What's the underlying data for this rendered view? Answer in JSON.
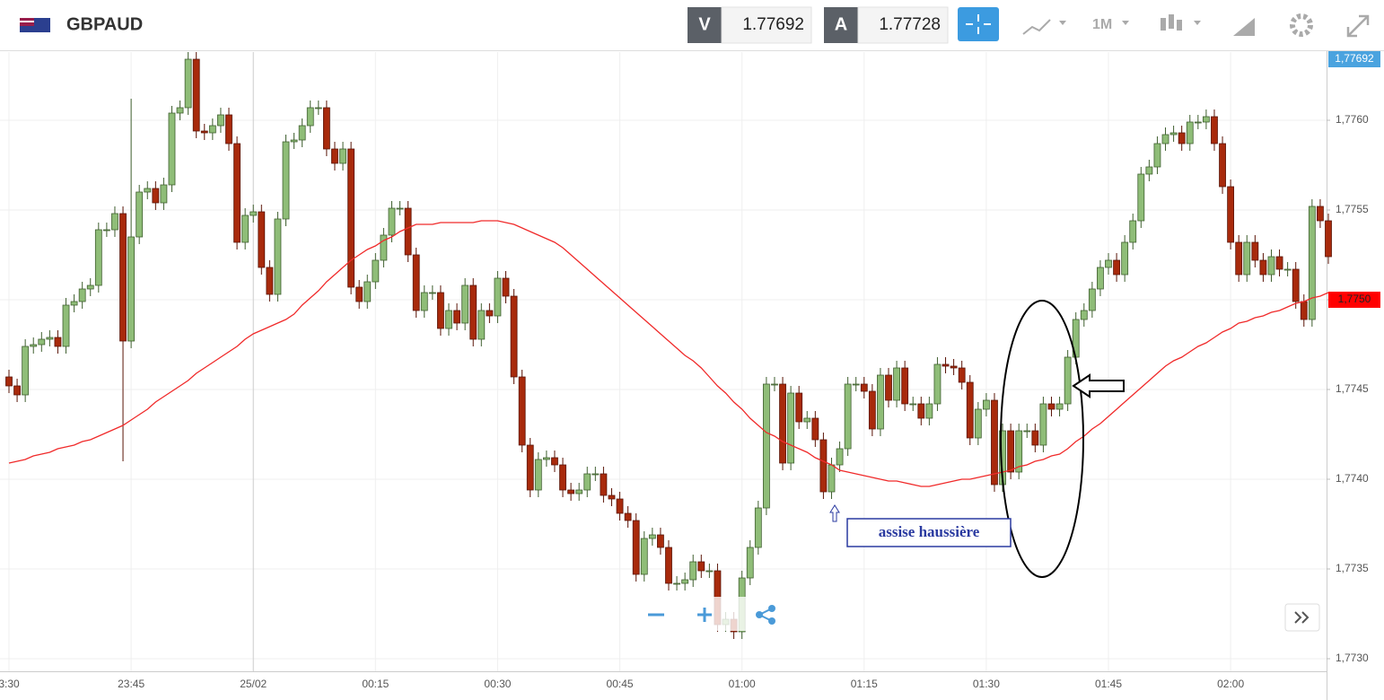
{
  "toolbar": {
    "symbol": "GBPAUD",
    "sell_label": "V",
    "sell": 1.77692,
    "buy_label": "A",
    "buy": 1.77728,
    "timeframe": "1M"
  },
  "chart_data": {
    "type": "candlestick",
    "title": "GBPAUD",
    "categories": [
      "3:30",
      null,
      null,
      null,
      null,
      null,
      null,
      null,
      null,
      null,
      null,
      null,
      null,
      null,
      null,
      "23:45",
      null,
      null,
      null,
      null,
      null,
      null,
      null,
      null,
      null,
      null,
      null,
      null,
      null,
      null,
      "25/02",
      null,
      null,
      null,
      null,
      null,
      null,
      null,
      null,
      null,
      null,
      null,
      null,
      null,
      null,
      "00:15",
      null,
      null,
      null,
      null,
      null,
      null,
      null,
      null,
      null,
      null,
      null,
      null,
      null,
      null,
      "00:30",
      null,
      null,
      null,
      null,
      null,
      null,
      null,
      null,
      null,
      null,
      null,
      null,
      null,
      null,
      "00:45",
      null,
      null,
      null,
      null,
      null,
      null,
      null,
      null,
      null,
      null,
      null,
      null,
      null,
      null,
      "01:00",
      null,
      null,
      null,
      null,
      null,
      null,
      null,
      null,
      null,
      null,
      null,
      null,
      null,
      null,
      "01:15",
      null,
      null,
      null,
      null,
      null,
      null,
      null,
      null,
      null,
      null,
      null,
      null,
      null,
      null,
      "01:30",
      null,
      null,
      null,
      null,
      null,
      null,
      null,
      null,
      null,
      null,
      null,
      null,
      null,
      null,
      "01:45",
      null,
      null,
      null,
      null,
      null,
      null,
      null,
      null,
      null,
      null,
      null,
      null,
      null,
      null,
      "02:00",
      null,
      null,
      null,
      null,
      null,
      null,
      null,
      null,
      null,
      null,
      null,
      null
    ],
    "open": [
      1.77457,
      1.77452,
      1.77447,
      1.77474,
      1.77475,
      1.77478,
      1.77479,
      1.77474,
      1.77497,
      1.77499,
      1.77506,
      1.77508,
      1.77539,
      1.77539,
      1.77548,
      1.77477,
      1.77535,
      1.7756,
      1.77562,
      1.77554,
      1.77564,
      1.77604,
      1.77607,
      1.77634,
      1.77594,
      1.77593,
      1.77597,
      1.77603,
      1.77587,
      1.77532,
      1.77547,
      1.77549,
      1.77518,
      1.77503,
      1.77545,
      1.77588,
      1.77589,
      1.77597,
      1.77607,
      1.77607,
      1.77584,
      1.77576,
      1.77584,
      1.77507,
      1.77499,
      1.7751,
      1.77522,
      1.77536,
      1.77551,
      1.77551,
      1.77525,
      1.77494,
      1.77504,
      1.77504,
      1.77484,
      1.77494,
      1.77487,
      1.77508,
      1.77478,
      1.77494,
      1.77491,
      1.77512,
      1.77502,
      1.77457,
      1.77419,
      1.77394,
      1.77411,
      1.77412,
      1.77408,
      1.77394,
      1.77392,
      1.77394,
      1.77403,
      1.77403,
      1.77391,
      1.77389,
      1.77381,
      1.77377,
      1.77347,
      1.77367,
      1.77369,
      1.77362,
      1.77342,
      1.77342,
      1.77344,
      1.77354,
      1.77349,
      1.77349,
      1.77319,
      1.77322,
      1.77315,
      1.77345,
      1.77362,
      1.77384,
      1.77453,
      1.77453,
      1.77409,
      1.77448,
      1.77432,
      1.77434,
      1.77422,
      1.77393,
      1.77408,
      1.77417,
      1.77453,
      1.77453,
      1.77449,
      1.77428,
      1.77458,
      1.77444,
      1.77462,
      1.77442,
      1.77442,
      1.77434,
      1.77442,
      1.77464,
      1.77463,
      1.77462,
      1.77454,
      1.77423,
      1.77439,
      1.77444,
      1.77397,
      1.77427,
      1.77404,
      1.77427,
      1.77427,
      1.77419,
      1.77442,
      1.77439,
      1.77442,
      1.77468,
      1.77489,
      1.77494,
      1.77506,
      1.77518,
      1.77522,
      1.77514,
      1.77532,
      1.77544,
      1.7757,
      1.77574,
      1.77587,
      1.77592,
      1.77593,
      1.77587,
      1.77599,
      1.77599,
      1.77602,
      1.77587,
      1.77563,
      1.77532,
      1.77514,
      1.77532,
      1.77522,
      1.77514,
      1.77524,
      1.77517,
      1.77517,
      1.77499,
      1.77489,
      1.77552,
      1.77544
    ],
    "high": [
      1.77461,
      1.77456,
      1.77478,
      1.77479,
      1.77482,
      1.77483,
      1.77483,
      1.77501,
      1.77503,
      1.7751,
      1.77512,
      1.77543,
      1.77543,
      1.77552,
      1.77552,
      1.77612,
      1.77564,
      1.77566,
      1.77566,
      1.77568,
      1.77608,
      1.77611,
      1.77638,
      1.77638,
      1.77598,
      1.77601,
      1.77607,
      1.77607,
      1.77591,
      1.77551,
      1.77553,
      1.77553,
      1.77522,
      1.77549,
      1.77592,
      1.77593,
      1.77601,
      1.77611,
      1.77611,
      1.77611,
      1.77588,
      1.77588,
      1.77588,
      1.77511,
      1.77514,
      1.77526,
      1.7754,
      1.77555,
      1.77555,
      1.77555,
      1.77529,
      1.77508,
      1.77508,
      1.77508,
      1.77498,
      1.77498,
      1.77512,
      1.77512,
      1.77498,
      1.77498,
      1.77516,
      1.77516,
      1.77506,
      1.77461,
      1.77423,
      1.77415,
      1.77416,
      1.77416,
      1.77412,
      1.77398,
      1.77398,
      1.77407,
      1.77407,
      1.77407,
      1.77395,
      1.77393,
      1.77385,
      1.77381,
      1.77371,
      1.77373,
      1.77373,
      1.77366,
      1.77346,
      1.77348,
      1.77358,
      1.77358,
      1.77353,
      1.77353,
      1.77326,
      1.77326,
      1.77349,
      1.77366,
      1.77388,
      1.77457,
      1.77457,
      1.77457,
      1.77452,
      1.77452,
      1.77438,
      1.77438,
      1.77426,
      1.77412,
      1.77421,
      1.77457,
      1.77457,
      1.77457,
      1.77453,
      1.77462,
      1.77462,
      1.77466,
      1.77466,
      1.77446,
      1.77446,
      1.77446,
      1.77468,
      1.77468,
      1.77467,
      1.77466,
      1.77458,
      1.77443,
      1.77448,
      1.77448,
      1.77431,
      1.77431,
      1.77431,
      1.77431,
      1.77431,
      1.77446,
      1.77446,
      1.77446,
      1.77472,
      1.77493,
      1.77498,
      1.7751,
      1.77522,
      1.77526,
      1.77526,
      1.77536,
      1.77548,
      1.77574,
      1.77578,
      1.77591,
      1.77596,
      1.77597,
      1.77597,
      1.77603,
      1.77603,
      1.77606,
      1.77606,
      1.77591,
      1.77567,
      1.77536,
      1.77536,
      1.77536,
      1.77526,
      1.77528,
      1.77528,
      1.77521,
      1.77521,
      1.77503,
      1.77556,
      1.77556,
      1.77548
    ],
    "low": [
      1.77448,
      1.77443,
      1.77443,
      1.7747,
      1.77471,
      1.77474,
      1.7747,
      1.7747,
      1.77493,
      1.77495,
      1.77502,
      1.77504,
      1.77535,
      1.77535,
      1.7741,
      1.77473,
      1.77531,
      1.77556,
      1.7755,
      1.7755,
      1.7756,
      1.776,
      1.77603,
      1.7759,
      1.77589,
      1.77589,
      1.77593,
      1.77583,
      1.77528,
      1.77528,
      1.77543,
      1.77514,
      1.77499,
      1.77499,
      1.77541,
      1.77584,
      1.77585,
      1.77593,
      1.77603,
      1.7758,
      1.77572,
      1.77572,
      1.77503,
      1.77495,
      1.77495,
      1.77506,
      1.77518,
      1.77532,
      1.77547,
      1.77521,
      1.7749,
      1.7749,
      1.775,
      1.7748,
      1.7748,
      1.77483,
      1.77483,
      1.77474,
      1.77474,
      1.77487,
      1.77487,
      1.77498,
      1.77453,
      1.77415,
      1.7739,
      1.7739,
      1.77407,
      1.77404,
      1.7739,
      1.77388,
      1.77388,
      1.7739,
      1.77399,
      1.77387,
      1.77385,
      1.77377,
      1.77373,
      1.77343,
      1.77343,
      1.77363,
      1.77358,
      1.77338,
      1.77338,
      1.77338,
      1.7734,
      1.77345,
      1.77345,
      1.77315,
      1.77315,
      1.77311,
      1.77311,
      1.77341,
      1.77358,
      1.7738,
      1.77449,
      1.77405,
      1.77405,
      1.77428,
      1.77428,
      1.77418,
      1.77389,
      1.77389,
      1.77404,
      1.77413,
      1.77449,
      1.77445,
      1.77424,
      1.77424,
      1.7744,
      1.7744,
      1.77438,
      1.77438,
      1.7743,
      1.7743,
      1.77438,
      1.77459,
      1.77458,
      1.7745,
      1.77419,
      1.77419,
      1.77435,
      1.77393,
      1.77393,
      1.774,
      1.774,
      1.77423,
      1.77415,
      1.77415,
      1.77435,
      1.77435,
      1.77438,
      1.77464,
      1.77485,
      1.7749,
      1.77502,
      1.77514,
      1.7751,
      1.7751,
      1.77528,
      1.7754,
      1.77566,
      1.7757,
      1.77583,
      1.77588,
      1.77583,
      1.77583,
      1.77595,
      1.77595,
      1.77583,
      1.77559,
      1.77528,
      1.7751,
      1.7751,
      1.77518,
      1.7751,
      1.7751,
      1.77513,
      1.77513,
      1.77495,
      1.77485,
      1.77485,
      1.7754,
      1.7752
    ],
    "close": [
      1.77452,
      1.77447,
      1.77474,
      1.77475,
      1.77478,
      1.77479,
      1.77474,
      1.77497,
      1.77499,
      1.77506,
      1.77508,
      1.77539,
      1.77539,
      1.77548,
      1.77477,
      1.77535,
      1.7756,
      1.77562,
      1.77554,
      1.77564,
      1.77604,
      1.77607,
      1.77634,
      1.77594,
      1.77593,
      1.77597,
      1.77603,
      1.77587,
      1.77532,
      1.77547,
      1.77549,
      1.77518,
      1.77503,
      1.77545,
      1.77588,
      1.77589,
      1.77597,
      1.77607,
      1.77607,
      1.77584,
      1.77576,
      1.77584,
      1.77507,
      1.77499,
      1.7751,
      1.77522,
      1.77536,
      1.77551,
      1.77551,
      1.77525,
      1.77494,
      1.77504,
      1.77504,
      1.77484,
      1.77494,
      1.77487,
      1.77508,
      1.77478,
      1.77494,
      1.77491,
      1.77512,
      1.77502,
      1.77457,
      1.77419,
      1.77394,
      1.77411,
      1.77412,
      1.77408,
      1.77394,
      1.77392,
      1.77394,
      1.77403,
      1.77403,
      1.77391,
      1.77389,
      1.77381,
      1.77377,
      1.77347,
      1.77367,
      1.77369,
      1.77362,
      1.77342,
      1.77342,
      1.77344,
      1.77354,
      1.77349,
      1.77349,
      1.77319,
      1.77322,
      1.77315,
      1.77345,
      1.77362,
      1.77384,
      1.77453,
      1.77453,
      1.77409,
      1.77448,
      1.77432,
      1.77434,
      1.77422,
      1.77393,
      1.77408,
      1.77417,
      1.77453,
      1.77453,
      1.77449,
      1.77428,
      1.77458,
      1.77444,
      1.77462,
      1.77442,
      1.77442,
      1.77434,
      1.77442,
      1.77464,
      1.77463,
      1.77462,
      1.77454,
      1.77423,
      1.77439,
      1.77444,
      1.77397,
      1.77427,
      1.77404,
      1.77427,
      1.77427,
      1.77419,
      1.77442,
      1.77439,
      1.77442,
      1.77468,
      1.77489,
      1.77494,
      1.77506,
      1.77518,
      1.77522,
      1.77514,
      1.77532,
      1.77544,
      1.7757,
      1.77574,
      1.77587,
      1.77592,
      1.77593,
      1.77587,
      1.77599,
      1.77599,
      1.77602,
      1.77587,
      1.77563,
      1.77532,
      1.77514,
      1.77532,
      1.77522,
      1.77514,
      1.77524,
      1.77517,
      1.77517,
      1.77499,
      1.77489,
      1.77552,
      1.77544,
      1.77524
    ],
    "up_color": "#8fbd78",
    "down_color": "#a82a0c",
    "ma": {
      "color": "#f02a2a",
      "values": [
        1.77409,
        1.7741,
        1.77411,
        1.77413,
        1.77414,
        1.77415,
        1.77417,
        1.77418,
        1.77419,
        1.77421,
        1.77422,
        1.77424,
        1.77426,
        1.77428,
        1.7743,
        1.77433,
        1.77436,
        1.77439,
        1.77443,
        1.77446,
        1.77449,
        1.77452,
        1.77455,
        1.77459,
        1.77462,
        1.77465,
        1.77468,
        1.77471,
        1.77474,
        1.77478,
        1.77481,
        1.77483,
        1.77485,
        1.77487,
        1.77489,
        1.77492,
        1.77497,
        1.77501,
        1.77505,
        1.7751,
        1.77514,
        1.77518,
        1.77522,
        1.77525,
        1.77528,
        1.7753,
        1.77533,
        1.77535,
        1.77538,
        1.7754,
        1.77542,
        1.77542,
        1.77542,
        1.77543,
        1.77543,
        1.77543,
        1.77543,
        1.77543,
        1.77544,
        1.77544,
        1.77544,
        1.77543,
        1.77542,
        1.7754,
        1.77538,
        1.77536,
        1.77534,
        1.77532,
        1.77529,
        1.77525,
        1.77521,
        1.77517,
        1.77513,
        1.77509,
        1.77505,
        1.77501,
        1.77497,
        1.77493,
        1.77489,
        1.77485,
        1.77481,
        1.77477,
        1.77473,
        1.77469,
        1.77466,
        1.77462,
        1.77457,
        1.77452,
        1.77448,
        1.77443,
        1.77439,
        1.77434,
        1.7743,
        1.77426,
        1.77424,
        1.77421,
        1.77419,
        1.77417,
        1.77415,
        1.77412,
        1.7741,
        1.77408,
        1.77405,
        1.77404,
        1.77403,
        1.77402,
        1.77401,
        1.774,
        1.77399,
        1.77399,
        1.77398,
        1.77397,
        1.77396,
        1.77396,
        1.77397,
        1.77398,
        1.77399,
        1.774,
        1.774,
        1.77401,
        1.77402,
        1.77403,
        1.77404,
        1.77405,
        1.77407,
        1.77408,
        1.7741,
        1.77411,
        1.77413,
        1.77414,
        1.77417,
        1.77421,
        1.77424,
        1.77428,
        1.77431,
        1.77435,
        1.77439,
        1.77443,
        1.77447,
        1.77451,
        1.77455,
        1.77459,
        1.77463,
        1.77466,
        1.77468,
        1.77471,
        1.77474,
        1.77476,
        1.77479,
        1.77482,
        1.77484,
        1.77487,
        1.77488,
        1.7749,
        1.77491,
        1.77493,
        1.77494,
        1.77496,
        1.77498,
        1.77499,
        1.77501,
        1.77502,
        1.77504
      ]
    },
    "ylim": [
      1.77293,
      1.77638
    ],
    "yticks": [
      {
        "value": 1.773,
        "label": "1,7730"
      },
      {
        "value": 1.7735,
        "label": "1,7735"
      },
      {
        "value": 1.774,
        "label": "1,7740"
      },
      {
        "value": 1.7745,
        "label": "1,7745"
      },
      {
        "value": 1.775,
        "label": "1,7750"
      },
      {
        "value": 1.7755,
        "label": "1,7755"
      },
      {
        "value": 1.776,
        "label": "1,7760"
      }
    ],
    "grid": true,
    "last_price": {
      "value": 1.77692,
      "label": "1,77692"
    },
    "ma_label": {
      "value": 1.775,
      "label": "1,7750"
    },
    "annotation": "assise haussière"
  }
}
